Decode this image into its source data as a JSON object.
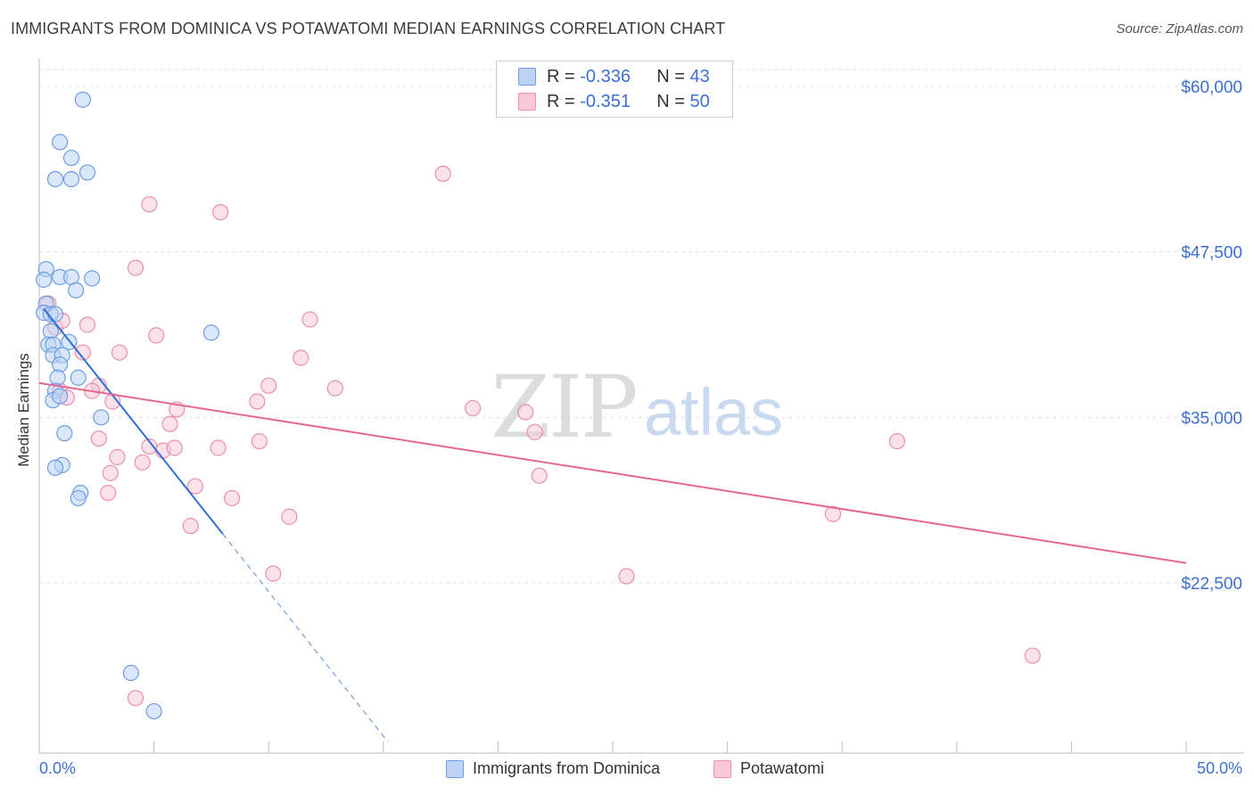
{
  "title": "IMMIGRANTS FROM DOMINICA VS POTAWATOMI MEDIAN EARNINGS CORRELATION CHART",
  "source": "Source: ZipAtlas.com",
  "watermark": {
    "zip": "ZIP",
    "atlas": "atlas"
  },
  "legend": {
    "r_label": "R =",
    "n_label": "N =",
    "series": [
      {
        "r": "-0.336",
        "n": "43"
      },
      {
        "r": "-0.351",
        "n": "50"
      }
    ]
  },
  "chart_data": {
    "type": "scatter",
    "title": "IMMIGRANTS FROM DOMINICA VS POTAWATOMI MEDIAN EARNINGS CORRELATION CHART",
    "xlabel": "",
    "ylabel": "Median Earnings",
    "xlim": [
      0,
      50
    ],
    "ylim": [
      10000,
      62000
    ],
    "x_tick_labels": [
      "0.0%",
      "50.0%"
    ],
    "y_ticks": [
      22500,
      35000,
      47500,
      60000
    ],
    "y_tick_labels": [
      "$22,500",
      "$35,000",
      "$47,500",
      "$60,000"
    ],
    "grid": true,
    "series": [
      {
        "name": "Immigrants from Dominica",
        "color": "#6d9ee0",
        "fill": "#bcd3f5",
        "trend": {
          "x0": 0.2,
          "y0": 43200,
          "x1": 8.0,
          "y1": 26200,
          "dash_to_x": 15.2,
          "dash_to_y": 10500
        },
        "points": [
          [
            1.9,
            59000
          ],
          [
            0.9,
            55800
          ],
          [
            1.4,
            54600
          ],
          [
            0.7,
            53000
          ],
          [
            1.4,
            53000
          ],
          [
            2.1,
            53500
          ],
          [
            0.3,
            46200
          ],
          [
            0.2,
            45400
          ],
          [
            0.9,
            45600
          ],
          [
            1.4,
            45600
          ],
          [
            2.3,
            45500
          ],
          [
            1.6,
            44600
          ],
          [
            0.3,
            43600
          ],
          [
            0.2,
            42900
          ],
          [
            0.5,
            42800
          ],
          [
            0.7,
            42800
          ],
          [
            0.5,
            41500
          ],
          [
            0.4,
            40500
          ],
          [
            0.6,
            40500
          ],
          [
            1.3,
            40700
          ],
          [
            0.6,
            39700
          ],
          [
            1.0,
            39700
          ],
          [
            0.9,
            39000
          ],
          [
            0.8,
            38000
          ],
          [
            1.7,
            38000
          ],
          [
            0.7,
            37000
          ],
          [
            0.6,
            36300
          ],
          [
            0.9,
            36600
          ],
          [
            7.5,
            41400
          ],
          [
            2.7,
            35000
          ],
          [
            1.1,
            33800
          ],
          [
            1.0,
            31400
          ],
          [
            0.7,
            31200
          ],
          [
            1.8,
            29300
          ],
          [
            1.7,
            28900
          ],
          [
            4.0,
            15700
          ],
          [
            5.0,
            12800
          ]
        ]
      },
      {
        "name": "Potawatomi",
        "color": "#ea8fad",
        "fill": "#f7c9d8",
        "trend": {
          "x0": 0.0,
          "y0": 37600,
          "x1": 50.0,
          "y1": 24000
        },
        "points": [
          [
            0.4,
            43600
          ],
          [
            0.7,
            41800
          ],
          [
            1.0,
            42300
          ],
          [
            0.9,
            37000
          ],
          [
            1.2,
            36500
          ],
          [
            2.1,
            42000
          ],
          [
            1.9,
            39900
          ],
          [
            2.6,
            37400
          ],
          [
            3.2,
            36200
          ],
          [
            3.5,
            39900
          ],
          [
            2.3,
            37000
          ],
          [
            4.8,
            51100
          ],
          [
            4.2,
            46300
          ],
          [
            5.1,
            41200
          ],
          [
            7.9,
            50500
          ],
          [
            11.8,
            42400
          ],
          [
            11.4,
            39500
          ],
          [
            12.9,
            37200
          ],
          [
            9.5,
            36200
          ],
          [
            10.0,
            37400
          ],
          [
            5.7,
            34500
          ],
          [
            6.0,
            35600
          ],
          [
            6.8,
            29800
          ],
          [
            2.6,
            33400
          ],
          [
            3.1,
            30800
          ],
          [
            3.0,
            29300
          ],
          [
            3.4,
            32000
          ],
          [
            4.5,
            31600
          ],
          [
            4.8,
            32800
          ],
          [
            5.4,
            32500
          ],
          [
            5.9,
            32700
          ],
          [
            7.8,
            32700
          ],
          [
            9.6,
            33200
          ],
          [
            8.4,
            28900
          ],
          [
            6.6,
            26800
          ],
          [
            10.9,
            27500
          ],
          [
            10.2,
            23200
          ],
          [
            17.6,
            53400
          ],
          [
            18.9,
            35700
          ],
          [
            21.2,
            35400
          ],
          [
            21.6,
            33900
          ],
          [
            21.8,
            30600
          ],
          [
            25.6,
            23000
          ],
          [
            34.6,
            27700
          ],
          [
            37.4,
            33200
          ],
          [
            43.3,
            17000
          ],
          [
            4.2,
            13800
          ]
        ]
      }
    ]
  }
}
